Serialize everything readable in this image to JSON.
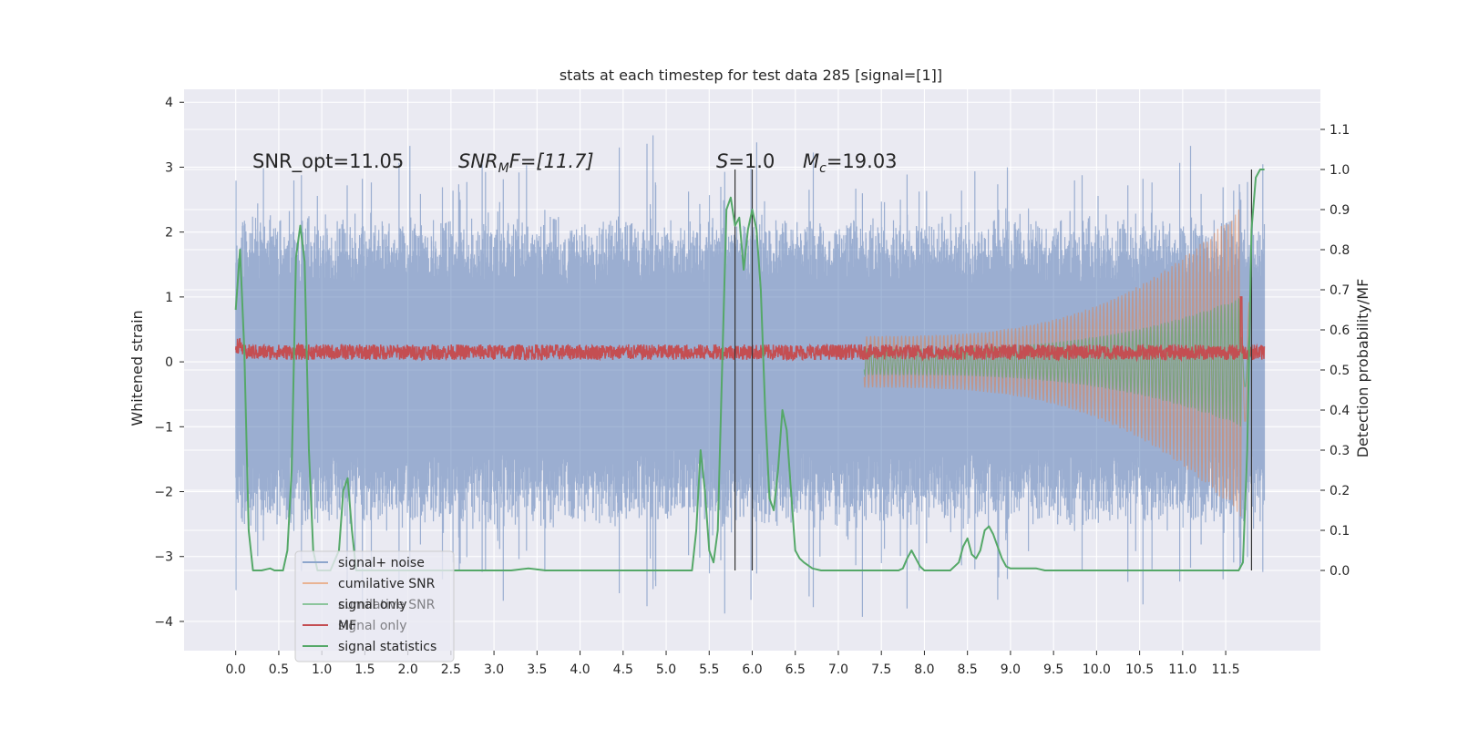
{
  "chart_data": {
    "type": "line",
    "title": "stats at each timestep for test data 285 [signal=[1]]",
    "xlabel": "",
    "ylabel": "Whitened strain",
    "ylabel_right": "Detection probability/MF",
    "xlim": [
      -0.6,
      12.6
    ],
    "ylim": [
      -4.45,
      4.2
    ],
    "ylim_right": [
      -0.2,
      1.2
    ],
    "x_ticks": [
      "0.0",
      "0.5",
      "1.0",
      "1.5",
      "2.0",
      "2.5",
      "3.0",
      "3.5",
      "4.0",
      "4.5",
      "5.0",
      "5.5",
      "6.0",
      "6.5",
      "7.0",
      "7.5",
      "8.0",
      "8.5",
      "9.0",
      "9.5",
      "10.0",
      "10.5",
      "11.0",
      "11.5"
    ],
    "y_ticks": [
      "4",
      "3",
      "2",
      "1",
      "0",
      "−1",
      "−2",
      "−3",
      "−4"
    ],
    "y_right_ticks": [
      "1.1",
      "1.0",
      "0.9",
      "0.8",
      "0.7",
      "0.6",
      "0.5",
      "0.4",
      "0.3",
      "0.2",
      "0.1",
      "0.0"
    ],
    "annotations": {
      "snr_opt": "SNR_opt=11.05",
      "snr_mf_var": "SNR",
      "snr_mf_sub": "M",
      "snr_mf_tail": "F=[11.7]",
      "s_var": "S",
      "s_tail": "=1.0",
      "mc_var": "M",
      "mc_sub": "c",
      "mc_tail": "=19.03"
    },
    "vertical_markers": [
      5.8,
      6.0,
      11.8
    ],
    "series": [
      {
        "name": "signal+ noise",
        "color": "#4c72b0",
        "axis": "left",
        "typical_amplitude": 2.3,
        "spike_amplitude": 3.6
      },
      {
        "name": "cumilative SNR",
        "color": "#dd8452",
        "axis": "left",
        "envelope_start": 0.4,
        "envelope_end": 2.4
      },
      {
        "name": "signal only",
        "color": "#55a868",
        "axis": "left",
        "envelope_start": 0.2,
        "envelope_end": 1.0
      },
      {
        "name": "MF",
        "color": "#c44e52",
        "axis": "left",
        "center": 0.15,
        "amplitude": 0.12
      },
      {
        "name": "signal statistics",
        "color": "#55a868",
        "axis": "right",
        "x": [
          0.0,
          0.05,
          0.1,
          0.15,
          0.2,
          0.3,
          0.4,
          0.45,
          0.5,
          0.55,
          0.6,
          0.65,
          0.7,
          0.75,
          0.8,
          0.85,
          0.9,
          0.95,
          1.0,
          1.1,
          1.2,
          1.25,
          1.3,
          1.35,
          1.4,
          1.45,
          1.5,
          1.6,
          1.8,
          2.0,
          2.5,
          3.0,
          3.2,
          3.4,
          3.6,
          4.0,
          4.5,
          4.8,
          5.0,
          5.2,
          5.3,
          5.35,
          5.4,
          5.45,
          5.5,
          5.55,
          5.6,
          5.65,
          5.7,
          5.75,
          5.8,
          5.85,
          5.9,
          5.95,
          6.0,
          6.05,
          6.1,
          6.15,
          6.2,
          6.25,
          6.3,
          6.35,
          6.4,
          6.45,
          6.5,
          6.55,
          6.6,
          6.7,
          6.8,
          7.0,
          7.5,
          7.7,
          7.75,
          7.8,
          7.85,
          7.9,
          7.95,
          8.0,
          8.1,
          8.3,
          8.4,
          8.45,
          8.5,
          8.55,
          8.6,
          8.65,
          8.7,
          8.75,
          8.8,
          8.85,
          8.9,
          8.95,
          9.0,
          9.05,
          9.1,
          9.2,
          9.3,
          9.4,
          9.6,
          10.0,
          11.0,
          11.6,
          11.65,
          11.7,
          11.75,
          11.8,
          11.85,
          11.9,
          11.95
        ],
        "y": [
          0.65,
          0.8,
          0.55,
          0.1,
          0.0,
          0.0,
          0.005,
          0.0,
          0.0,
          0.0,
          0.05,
          0.25,
          0.78,
          0.86,
          0.77,
          0.3,
          0.05,
          0.0,
          0.0,
          0.0,
          0.05,
          0.2,
          0.23,
          0.1,
          0.0,
          0.0,
          0.0,
          0.0,
          0.0,
          0.0,
          0.0,
          0.0,
          0.0,
          0.005,
          0.0,
          0.0,
          0.0,
          0.0,
          0.0,
          0.0,
          0.0,
          0.1,
          0.3,
          0.2,
          0.05,
          0.02,
          0.1,
          0.5,
          0.9,
          0.93,
          0.86,
          0.88,
          0.75,
          0.85,
          0.9,
          0.85,
          0.7,
          0.4,
          0.18,
          0.15,
          0.25,
          0.4,
          0.35,
          0.2,
          0.05,
          0.03,
          0.02,
          0.005,
          0.0,
          0.0,
          0.0,
          0.0,
          0.005,
          0.03,
          0.05,
          0.03,
          0.01,
          0.0,
          0.0,
          0.0,
          0.02,
          0.06,
          0.08,
          0.04,
          0.03,
          0.05,
          0.1,
          0.11,
          0.09,
          0.06,
          0.03,
          0.01,
          0.005,
          0.005,
          0.005,
          0.005,
          0.005,
          0.0,
          0.0,
          0.0,
          0.0,
          0.0,
          0.0,
          0.02,
          0.3,
          0.85,
          0.98,
          1.0,
          1.0
        ]
      }
    ],
    "legend_position": "lower-left",
    "legend": [
      {
        "label": "signal+ noise",
        "color": "#8da5cc"
      },
      {
        "label": "cumilative SNR",
        "color": "#e9b393"
      },
      {
        "label": "signal only",
        "color": "#8cc59c"
      },
      {
        "label": "MF",
        "color": "#c44e52"
      },
      {
        "label": "signal statistics",
        "color": "#55a868"
      }
    ],
    "legend_ghost": [
      {
        "label": "cumilative SNR"
      },
      {
        "label": "signal only"
      }
    ],
    "grid": true
  }
}
